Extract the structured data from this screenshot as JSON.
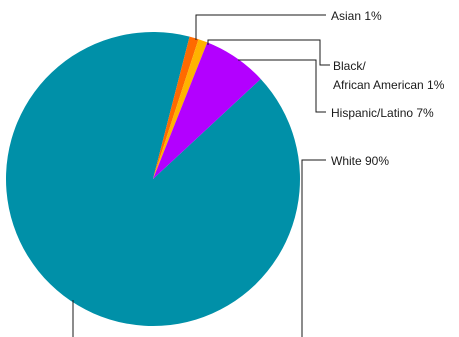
{
  "chart_data": {
    "type": "pie",
    "title": "",
    "slices": [
      {
        "label": "White 90%",
        "value": 90,
        "color": "#0090a8"
      },
      {
        "label": "Asian 1%",
        "value": 1,
        "color": "#ff6a00"
      },
      {
        "label": "Black/ African American 1%",
        "value": 1,
        "color": "#ffb300"
      },
      {
        "label": "Hispanic/Latino 7%",
        "value": 7,
        "color": "#b300ff"
      }
    ],
    "labels": {
      "asian": "Asian 1%",
      "black_line1": "Black/",
      "black_line2": "African American 1%",
      "hispanic": "Hispanic/Latino 7%",
      "white": "White 90%"
    }
  }
}
